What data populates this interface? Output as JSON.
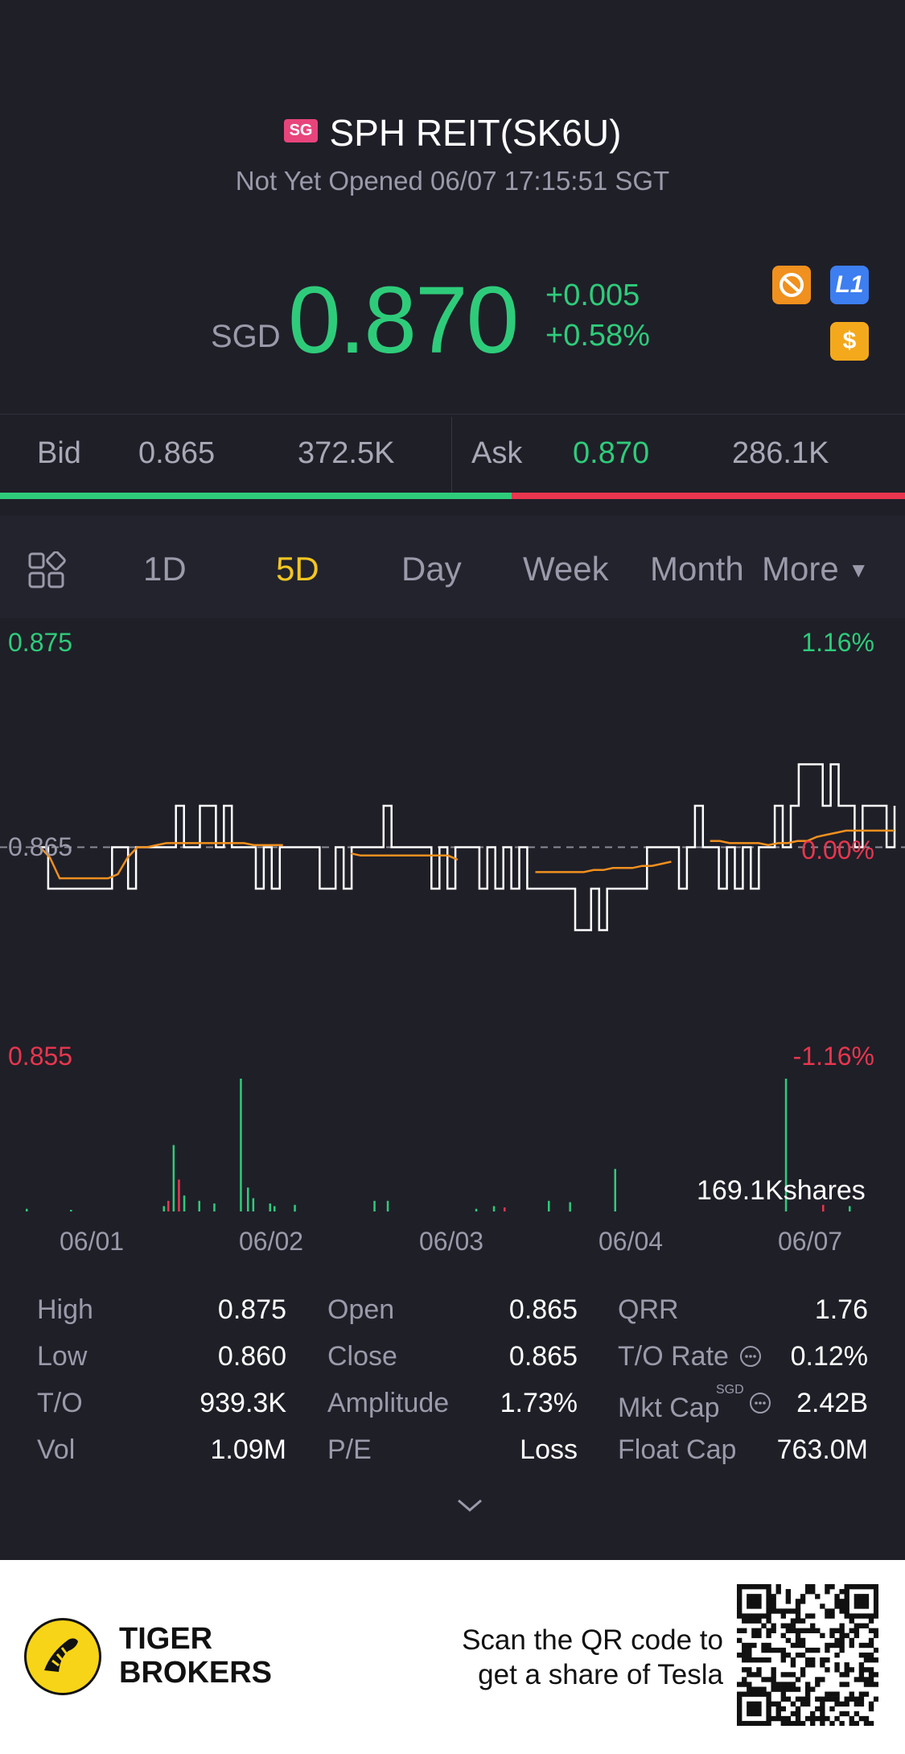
{
  "header": {
    "market_badge": "SG",
    "title": "SPH REIT(SK6U)",
    "status": "Not Yet Opened 06/07 17:15:51 SGT"
  },
  "quote": {
    "currency": "SGD",
    "price": "0.870",
    "change": "+0.005",
    "change_pct": "+0.58%",
    "icons": [
      "no-short-icon",
      "level1-icon",
      "dollar-icon"
    ],
    "level_badge": "L1",
    "dollar_badge": "$"
  },
  "bidask": {
    "bid_label": "Bid",
    "bid_price": "0.865",
    "bid_size": "372.5K",
    "ask_label": "Ask",
    "ask_price": "0.870",
    "ask_size": "286.1K",
    "bid_fraction": 0.565
  },
  "tabs": {
    "items": [
      "1D",
      "5D",
      "Day",
      "Week",
      "Month"
    ],
    "active": "5D",
    "more_label": "More"
  },
  "chart_data": {
    "type": "line",
    "y_labels": {
      "top_price": "0.875",
      "mid_price": "0.865",
      "bottom_price": "0.855",
      "top_pct": "1.16%",
      "mid_pct": "0.00%",
      "bottom_pct": "-1.16%"
    },
    "ylim": [
      0.855,
      0.875
    ],
    "reference_price": 0.865,
    "x_labels": [
      "06/01",
      "06/02",
      "06/03",
      "06/04",
      "06/07"
    ],
    "series": [
      {
        "type": "price",
        "color": "#ffffff",
        "values": [
          0.865,
          0.863,
          0.863,
          0.863,
          0.863,
          0.863,
          0.863,
          0.863,
          0.863,
          0.865,
          0.865,
          0.863,
          0.865,
          0.865,
          0.865,
          0.865,
          0.865,
          0.867,
          0.865,
          0.865,
          0.867,
          0.867,
          0.865,
          0.867,
          0.865,
          0.865,
          0.865,
          0.863,
          0.865,
          0.863,
          0.865,
          0.865,
          0.865,
          0.865,
          0.865,
          0.863,
          0.863,
          0.865,
          0.863,
          0.865,
          0.865,
          0.865,
          0.865,
          0.867,
          0.865,
          0.865,
          0.865,
          0.865,
          0.865,
          0.863,
          0.865,
          0.863,
          0.865,
          0.865,
          0.865,
          0.863,
          0.865,
          0.863,
          0.865,
          0.863,
          0.865,
          0.863,
          0.863,
          0.863,
          0.863,
          0.863,
          0.863,
          0.861,
          0.861,
          0.863,
          0.861,
          0.863,
          0.863,
          0.863,
          0.863,
          0.863,
          0.865,
          0.865,
          0.865,
          0.865,
          0.863,
          0.865,
          0.867,
          0.865,
          0.865,
          0.863,
          0.865,
          0.863,
          0.865,
          0.863,
          0.865,
          0.865,
          0.867,
          0.865,
          0.867,
          0.869,
          0.869,
          0.869,
          0.867,
          0.869,
          0.867,
          0.867,
          0.865,
          0.867,
          0.867,
          0.867,
          0.865,
          0.867
        ]
      },
      {
        "type": "average",
        "color": "#f0901e",
        "values": [
          0.865,
          0.8645,
          0.8635,
          0.8635,
          0.8635,
          0.8635,
          0.8635,
          0.8635,
          0.8637,
          0.8645,
          0.865,
          0.865,
          0.8651,
          0.8652,
          0.8652,
          0.8652,
          0.8652,
          0.8652,
          0.8652,
          0.8652,
          0.8652,
          0.8652,
          0.8651,
          0.8651,
          0.8651,
          0.8651,
          null,
          null,
          null,
          null,
          null,
          null,
          0.8647,
          0.8646,
          0.8646,
          0.8646,
          0.8646,
          0.8646,
          0.8646,
          0.8646,
          0.8646,
          0.8646,
          0.8646,
          0.8644,
          null,
          null,
          null,
          null,
          null,
          null,
          null,
          0.8638,
          0.8638,
          0.8638,
          0.8638,
          0.8638,
          0.8638,
          0.8639,
          0.8639,
          0.864,
          0.864,
          0.864,
          0.8641,
          0.8641,
          0.8642,
          0.8643,
          null,
          null,
          null,
          0.8653,
          0.8653,
          0.8652,
          0.8652,
          0.8652,
          0.8652,
          0.8651,
          0.8652,
          0.8652,
          0.8653,
          0.8653,
          0.8655,
          0.8656,
          0.8657,
          0.8658,
          0.8658,
          0.8658,
          0.8658,
          0.8658,
          0.8658
        ]
      }
    ],
    "volume": {
      "label": "169.1Kshares",
      "bars": [
        {
          "x": 0.02,
          "h": 0.02,
          "c": "g"
        },
        {
          "x": 0.07,
          "h": 0.01,
          "c": "g"
        },
        {
          "x": 0.175,
          "h": 0.04,
          "c": "g"
        },
        {
          "x": 0.18,
          "h": 0.08,
          "c": "r"
        },
        {
          "x": 0.186,
          "h": 0.5,
          "c": "g"
        },
        {
          "x": 0.192,
          "h": 0.24,
          "c": "r"
        },
        {
          "x": 0.198,
          "h": 0.12,
          "c": "g"
        },
        {
          "x": 0.215,
          "h": 0.08,
          "c": "g"
        },
        {
          "x": 0.232,
          "h": 0.06,
          "c": "g"
        },
        {
          "x": 0.262,
          "h": 1.0,
          "c": "g"
        },
        {
          "x": 0.27,
          "h": 0.18,
          "c": "g"
        },
        {
          "x": 0.276,
          "h": 0.1,
          "c": "g"
        },
        {
          "x": 0.295,
          "h": 0.06,
          "c": "g"
        },
        {
          "x": 0.3,
          "h": 0.04,
          "c": "g"
        },
        {
          "x": 0.323,
          "h": 0.05,
          "c": "g"
        },
        {
          "x": 0.413,
          "h": 0.08,
          "c": "g"
        },
        {
          "x": 0.428,
          "h": 0.08,
          "c": "g"
        },
        {
          "x": 0.528,
          "h": 0.02,
          "c": "g"
        },
        {
          "x": 0.548,
          "h": 0.04,
          "c": "g"
        },
        {
          "x": 0.56,
          "h": 0.03,
          "c": "r"
        },
        {
          "x": 0.61,
          "h": 0.08,
          "c": "g"
        },
        {
          "x": 0.634,
          "h": 0.07,
          "c": "g"
        },
        {
          "x": 0.685,
          "h": 0.32,
          "c": "g"
        },
        {
          "x": 0.878,
          "h": 1.0,
          "c": "g"
        },
        {
          "x": 0.92,
          "h": 0.05,
          "c": "r"
        },
        {
          "x": 0.95,
          "h": 0.04,
          "c": "g"
        }
      ]
    }
  },
  "stats": [
    {
      "label": "High",
      "value": "0.875"
    },
    {
      "label": "Low",
      "value": "0.860"
    },
    {
      "label": "T/O",
      "value": "939.3K"
    },
    {
      "label": "Vol",
      "value": "1.09M"
    },
    {
      "label": "Open",
      "value": "0.865"
    },
    {
      "label": "Close",
      "value": "0.865"
    },
    {
      "label": "Amplitude",
      "value": "1.73%"
    },
    {
      "label": "P/E",
      "value": "Loss"
    },
    {
      "label": "QRR",
      "value": "1.76"
    },
    {
      "label": "T/O Rate",
      "value": "0.12%"
    },
    {
      "label": "Mkt Cap",
      "value": "2.42B",
      "superscript": "SGD"
    },
    {
      "label": "Float Cap",
      "value": "763.0M"
    }
  ],
  "footer": {
    "brand_line1": "TIGER",
    "brand_line2": "BROKERS",
    "scan_line1": "Scan the QR code to",
    "scan_line2": "get a share of Tesla"
  },
  "colors": {
    "up": "#2ecc7a",
    "down": "#e8364e",
    "accent": "#f3c623",
    "background": "#1f1f28"
  }
}
